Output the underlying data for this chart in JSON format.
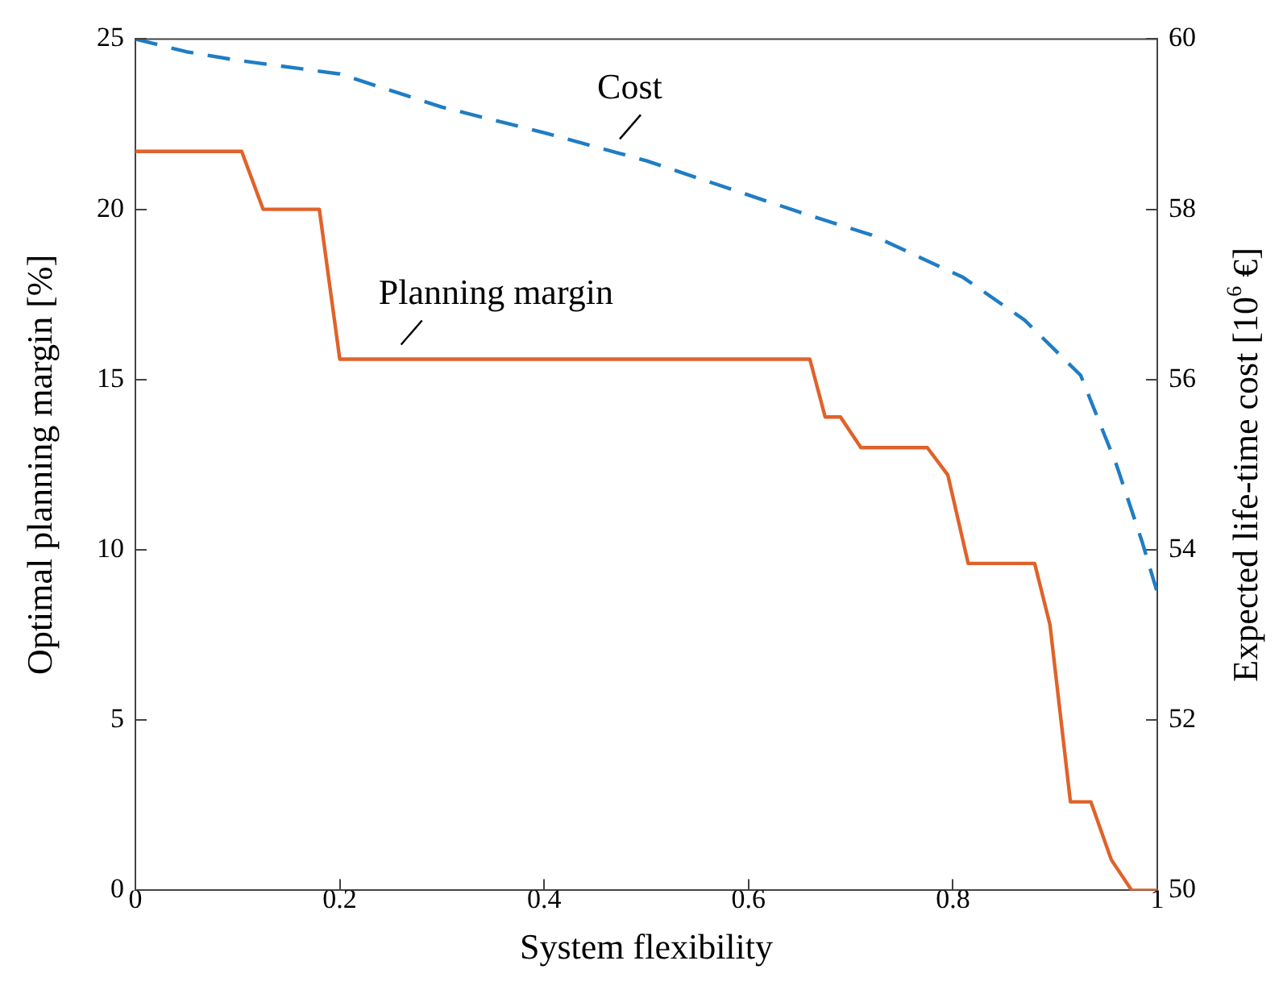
{
  "chart_data": {
    "type": "line",
    "xlabel": "System flexibility",
    "ylabel": "Optimal planning margin [%]",
    "y2label": "Expected life-time cost [10$^{6}$ €]",
    "xlim": [
      0,
      1
    ],
    "xticks": [
      0,
      0.2,
      0.4,
      0.6,
      0.8,
      1
    ],
    "ylim": [
      0,
      25
    ],
    "yticks": [
      0,
      5,
      10,
      15,
      20,
      25
    ],
    "y2lim": [
      50,
      60
    ],
    "y2ticks": [
      50,
      52,
      54,
      56,
      58,
      60
    ],
    "grid": false,
    "legend": false,
    "annotations": [
      "Cost",
      "Planning margin"
    ],
    "series": [
      {
        "color": "#1f7dc4",
        "line_style": "dashed",
        "axis": "y2",
        "x": [
          0,
          0.05,
          0.1,
          0.2,
          0.3,
          0.4,
          0.5,
          0.654,
          0.72,
          0.81,
          0.87,
          0.925,
          0.96,
          0.985,
          1
        ],
        "values": [
          60,
          59.85,
          59.75,
          59.59,
          59.2,
          58.9,
          58.57,
          57.95,
          57.7,
          57.2,
          56.7,
          56.05,
          55.0,
          54.1,
          53.5
        ]
      },
      {
        "color": "#e0622a",
        "line_style": "solid",
        "x": [
          0,
          0.104,
          0.125,
          0.18,
          0.2,
          0.66,
          0.675,
          0.69,
          0.71,
          0.775,
          0.795,
          0.815,
          0.88,
          0.895,
          0.915,
          0.935,
          0.955,
          0.975,
          1
        ],
        "values": [
          21.7,
          21.7,
          20,
          20,
          15.6,
          15.6,
          13.9,
          13.9,
          13.0,
          13.0,
          12.2,
          9.6,
          9.6,
          7.8,
          2.6,
          2.6,
          0.9,
          0,
          0
        ]
      }
    ]
  }
}
